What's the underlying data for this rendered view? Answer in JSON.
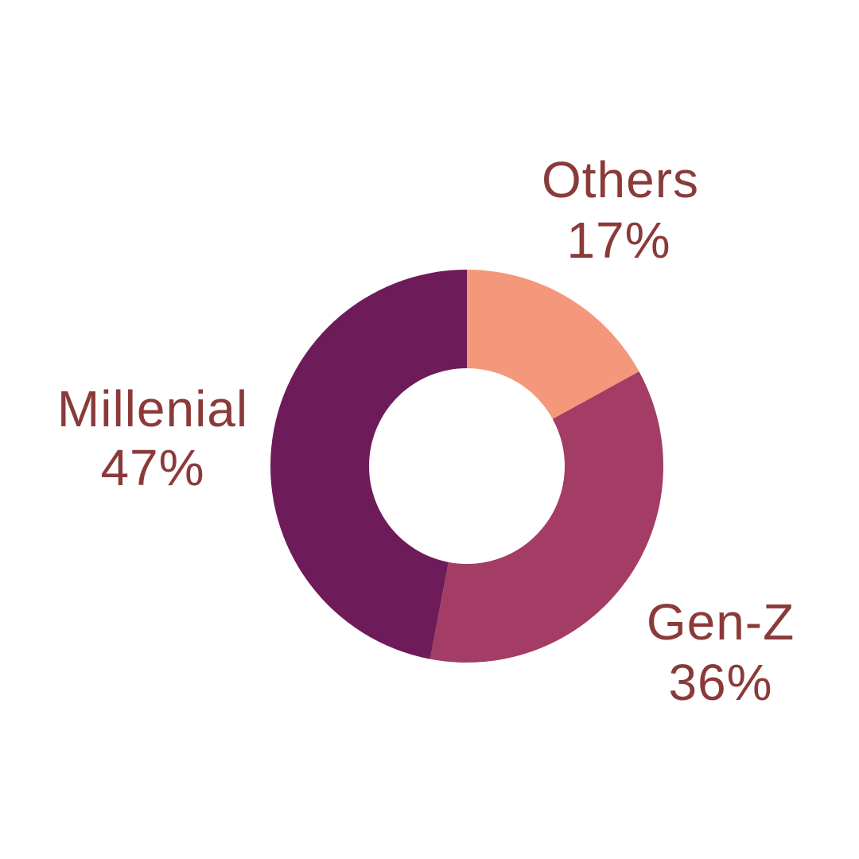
{
  "chart_data": {
    "type": "pie",
    "variant": "donut",
    "title": "",
    "categories": [
      "Millenial",
      "Gen-Z",
      "Others"
    ],
    "values": [
      47,
      36,
      17
    ],
    "value_labels": [
      "47%",
      "36%",
      "17%"
    ],
    "colors": [
      "#6e1b5a",
      "#a33d66",
      "#f4977a"
    ],
    "label_color": "#8b3a3a",
    "start": "12 o'clock",
    "direction": "counterclockwise",
    "legend": "none"
  }
}
